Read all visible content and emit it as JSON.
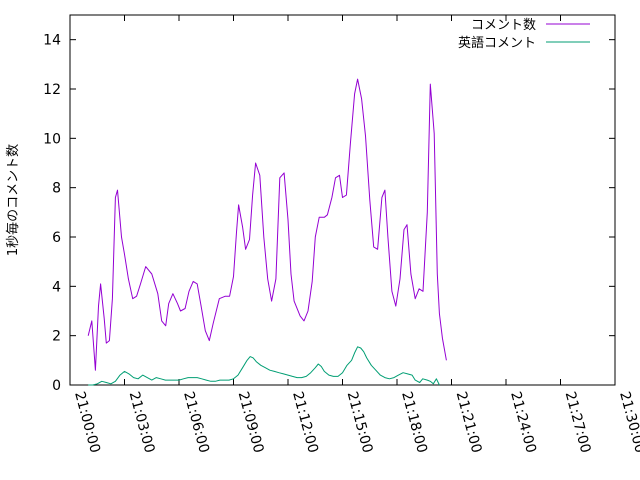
{
  "chart_data": {
    "type": "line",
    "title": "",
    "xlabel": "",
    "ylabel": "1秒毎のコメント数",
    "xlim": [
      0,
      1800
    ],
    "ylim": [
      0,
      15
    ],
    "grid": false,
    "legend_position": "top-right",
    "x_ticks": [
      {
        "s": 0,
        "label": "21:00:00"
      },
      {
        "s": 180,
        "label": "21:03:00"
      },
      {
        "s": 360,
        "label": "21:06:00"
      },
      {
        "s": 540,
        "label": "21:09:00"
      },
      {
        "s": 720,
        "label": "21:12:00"
      },
      {
        "s": 900,
        "label": "21:15:00"
      },
      {
        "s": 1080,
        "label": "21:18:00"
      },
      {
        "s": 1260,
        "label": "21:21:00"
      },
      {
        "s": 1440,
        "label": "21:24:00"
      },
      {
        "s": 1620,
        "label": "21:27:00"
      },
      {
        "s": 1800,
        "label": "21:30:00"
      }
    ],
    "y_ticks": [
      0,
      2,
      4,
      6,
      8,
      10,
      12,
      14
    ],
    "series": [
      {
        "name": "コメント数",
        "color": "#9400d3",
        "points": [
          [
            "21:01:00",
            2.0
          ],
          [
            "21:01:12",
            2.6
          ],
          [
            "21:01:24",
            0.6
          ],
          [
            "21:01:34",
            3.2
          ],
          [
            "21:01:41",
            4.1
          ],
          [
            "21:01:53",
            2.7
          ],
          [
            "21:02:00",
            1.7
          ],
          [
            "21:02:10",
            1.8
          ],
          [
            "21:02:20",
            3.5
          ],
          [
            "21:02:30",
            7.6
          ],
          [
            "21:02:37",
            7.9
          ],
          [
            "21:02:50",
            6.0
          ],
          [
            "21:03:00",
            5.3
          ],
          [
            "21:03:13",
            4.3
          ],
          [
            "21:03:27",
            3.5
          ],
          [
            "21:03:40",
            3.6
          ],
          [
            "21:03:53",
            4.1
          ],
          [
            "21:04:10",
            4.8
          ],
          [
            "21:04:30",
            4.5
          ],
          [
            "21:04:50",
            3.7
          ],
          [
            "21:05:03",
            2.6
          ],
          [
            "21:05:16",
            2.4
          ],
          [
            "21:05:26",
            3.3
          ],
          [
            "21:05:40",
            3.7
          ],
          [
            "21:05:55",
            3.3
          ],
          [
            "21:06:05",
            3.0
          ],
          [
            "21:06:20",
            3.1
          ],
          [
            "21:06:33",
            3.8
          ],
          [
            "21:06:47",
            4.2
          ],
          [
            "21:07:00",
            4.1
          ],
          [
            "21:07:13",
            3.2
          ],
          [
            "21:07:27",
            2.2
          ],
          [
            "21:07:40",
            1.8
          ],
          [
            "21:07:53",
            2.5
          ],
          [
            "21:08:13",
            3.5
          ],
          [
            "21:08:33",
            3.6
          ],
          [
            "21:08:47",
            3.6
          ],
          [
            "21:09:00",
            4.4
          ],
          [
            "21:09:10",
            6.2
          ],
          [
            "21:09:17",
            7.3
          ],
          [
            "21:09:30",
            6.4
          ],
          [
            "21:09:40",
            5.5
          ],
          [
            "21:09:53",
            5.9
          ],
          [
            "21:10:03",
            7.7
          ],
          [
            "21:10:13",
            9.0
          ],
          [
            "21:10:27",
            8.5
          ],
          [
            "21:10:40",
            6.0
          ],
          [
            "21:10:53",
            4.3
          ],
          [
            "21:11:06",
            3.4
          ],
          [
            "21:11:20",
            4.3
          ],
          [
            "21:11:33",
            8.4
          ],
          [
            "21:11:47",
            8.6
          ],
          [
            "21:12:00",
            6.7
          ],
          [
            "21:12:10",
            4.5
          ],
          [
            "21:12:20",
            3.4
          ],
          [
            "21:12:40",
            2.8
          ],
          [
            "21:12:53",
            2.6
          ],
          [
            "21:13:06",
            3.0
          ],
          [
            "21:13:20",
            4.2
          ],
          [
            "21:13:30",
            6.0
          ],
          [
            "21:13:43",
            6.8
          ],
          [
            "21:14:00",
            6.8
          ],
          [
            "21:14:10",
            6.9
          ],
          [
            "21:14:25",
            7.6
          ],
          [
            "21:14:37",
            8.4
          ],
          [
            "21:14:50",
            8.5
          ],
          [
            "21:15:00",
            7.6
          ],
          [
            "21:15:13",
            7.7
          ],
          [
            "21:15:26",
            9.8
          ],
          [
            "21:15:40",
            11.8
          ],
          [
            "21:15:50",
            12.4
          ],
          [
            "21:16:03",
            11.6
          ],
          [
            "21:16:16",
            10.1
          ],
          [
            "21:16:30",
            7.5
          ],
          [
            "21:16:43",
            5.6
          ],
          [
            "21:16:56",
            5.5
          ],
          [
            "21:17:10",
            7.6
          ],
          [
            "21:17:20",
            7.9
          ],
          [
            "21:17:30",
            6.0
          ],
          [
            "21:17:43",
            3.8
          ],
          [
            "21:17:56",
            3.2
          ],
          [
            "21:18:10",
            4.3
          ],
          [
            "21:18:23",
            6.3
          ],
          [
            "21:18:33",
            6.5
          ],
          [
            "21:18:46",
            4.5
          ],
          [
            "21:19:00",
            3.5
          ],
          [
            "21:19:13",
            3.9
          ],
          [
            "21:19:26",
            3.8
          ],
          [
            "21:19:40",
            7.0
          ],
          [
            "21:19:50",
            12.2
          ],
          [
            "21:20:03",
            10.2
          ],
          [
            "21:20:13",
            4.5
          ],
          [
            "21:20:20",
            2.9
          ],
          [
            "21:20:30",
            1.9
          ],
          [
            "21:20:43",
            1.0
          ]
        ]
      },
      {
        "name": "英語コメント",
        "color": "#009e73",
        "points": [
          [
            "21:01:00",
            0.0
          ],
          [
            "21:01:15",
            0.0
          ],
          [
            "21:01:30",
            0.05
          ],
          [
            "21:01:45",
            0.15
          ],
          [
            "21:02:00",
            0.1
          ],
          [
            "21:02:15",
            0.05
          ],
          [
            "21:02:30",
            0.15
          ],
          [
            "21:02:45",
            0.4
          ],
          [
            "21:03:00",
            0.55
          ],
          [
            "21:03:15",
            0.45
          ],
          [
            "21:03:30",
            0.3
          ],
          [
            "21:03:45",
            0.25
          ],
          [
            "21:04:00",
            0.4
          ],
          [
            "21:04:15",
            0.3
          ],
          [
            "21:04:30",
            0.2
          ],
          [
            "21:04:45",
            0.3
          ],
          [
            "21:05:00",
            0.25
          ],
          [
            "21:05:15",
            0.2
          ],
          [
            "21:05:30",
            0.2
          ],
          [
            "21:05:45",
            0.2
          ],
          [
            "21:06:00",
            0.2
          ],
          [
            "21:06:15",
            0.25
          ],
          [
            "21:06:30",
            0.3
          ],
          [
            "21:06:45",
            0.3
          ],
          [
            "21:07:00",
            0.3
          ],
          [
            "21:07:15",
            0.25
          ],
          [
            "21:07:30",
            0.2
          ],
          [
            "21:07:45",
            0.15
          ],
          [
            "21:08:00",
            0.15
          ],
          [
            "21:08:15",
            0.2
          ],
          [
            "21:08:30",
            0.2
          ],
          [
            "21:08:45",
            0.2
          ],
          [
            "21:09:00",
            0.25
          ],
          [
            "21:09:15",
            0.4
          ],
          [
            "21:09:30",
            0.7
          ],
          [
            "21:09:45",
            1.0
          ],
          [
            "21:09:55",
            1.15
          ],
          [
            "21:10:05",
            1.1
          ],
          [
            "21:10:15",
            0.95
          ],
          [
            "21:10:30",
            0.8
          ],
          [
            "21:10:45",
            0.7
          ],
          [
            "21:11:00",
            0.6
          ],
          [
            "21:11:15",
            0.55
          ],
          [
            "21:11:30",
            0.5
          ],
          [
            "21:11:45",
            0.45
          ],
          [
            "21:12:00",
            0.4
          ],
          [
            "21:12:15",
            0.35
          ],
          [
            "21:12:30",
            0.3
          ],
          [
            "21:12:45",
            0.3
          ],
          [
            "21:13:00",
            0.35
          ],
          [
            "21:13:15",
            0.5
          ],
          [
            "21:13:30",
            0.7
          ],
          [
            "21:13:40",
            0.85
          ],
          [
            "21:13:50",
            0.75
          ],
          [
            "21:14:00",
            0.55
          ],
          [
            "21:14:15",
            0.4
          ],
          [
            "21:14:30",
            0.35
          ],
          [
            "21:14:45",
            0.35
          ],
          [
            "21:15:00",
            0.5
          ],
          [
            "21:15:15",
            0.8
          ],
          [
            "21:15:30",
            1.0
          ],
          [
            "21:15:40",
            1.3
          ],
          [
            "21:15:50",
            1.55
          ],
          [
            "21:16:00",
            1.5
          ],
          [
            "21:16:10",
            1.35
          ],
          [
            "21:16:20",
            1.1
          ],
          [
            "21:16:35",
            0.8
          ],
          [
            "21:16:50",
            0.6
          ],
          [
            "21:17:05",
            0.4
          ],
          [
            "21:17:20",
            0.3
          ],
          [
            "21:17:35",
            0.25
          ],
          [
            "21:17:50",
            0.3
          ],
          [
            "21:18:05",
            0.4
          ],
          [
            "21:18:20",
            0.5
          ],
          [
            "21:18:35",
            0.45
          ],
          [
            "21:18:50",
            0.4
          ],
          [
            "21:19:00",
            0.2
          ],
          [
            "21:19:15",
            0.1
          ],
          [
            "21:19:25",
            0.25
          ],
          [
            "21:19:40",
            0.2
          ],
          [
            "21:19:50",
            0.15
          ],
          [
            "21:20:00",
            0.05
          ],
          [
            "21:20:10",
            0.25
          ],
          [
            "21:20:20",
            0.0
          ]
        ]
      }
    ]
  }
}
